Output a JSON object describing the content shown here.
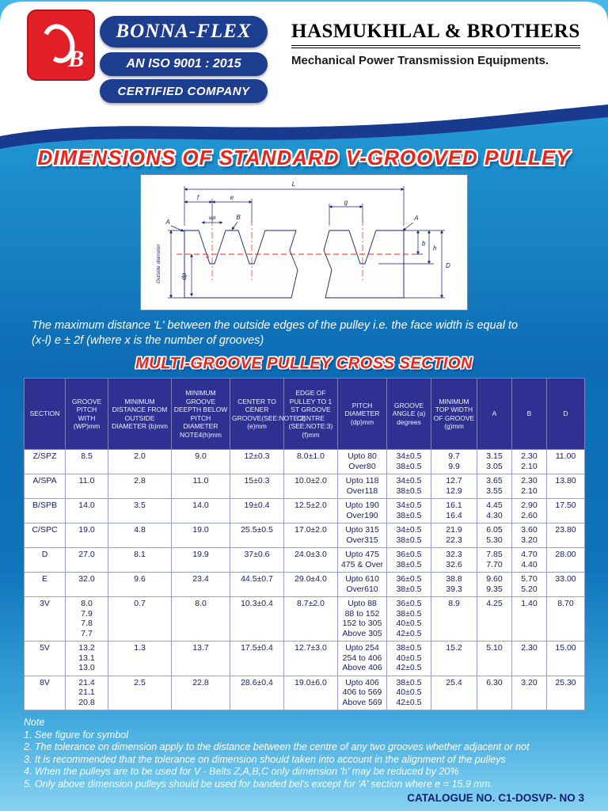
{
  "header": {
    "logo_letter": "B",
    "brand": "BONNA-FLEX",
    "iso_line": "AN ISO 9001 : 2015",
    "certified_line": "CERTIFIED COMPANY",
    "company": "HASMUKHLAL & BROTHERS",
    "tagline": "Mechanical Power Transmission Equipments."
  },
  "page_title": "DIMENSIONS OF STANDARD V-GROOVED PULLEY",
  "diagram": {
    "labels": {
      "L": "L",
      "f": "f",
      "e": "e",
      "A_left": "A",
      "wd": "wd",
      "B": "B",
      "g": "g",
      "A_right": "A",
      "dp": "dp",
      "alpha": "a",
      "b": "b",
      "h": "h",
      "D": "D",
      "axis": "Outside diameter"
    }
  },
  "description_line1": "The maximum distance 'L' between the outside edges of the pulley i.e. the face width is equal to",
  "description_line2": "(x-l) e ± 2f (where x is the number of grooves)",
  "table_title": "MULTI-GROOVE PULLEY CROSS SECTION",
  "table": {
    "headers": [
      "SECTION",
      "GROOVE PITCH WITH (WP)mm",
      "MINIMUM DISTANCE FROM OUTSIDE DIAMETER (b)mm",
      "MINIMUM GROOVE DEEPTH BELOW PITCH DIAMETER NOTE4(h)mm",
      "CENTER TO CENER GROOVE(SEE:NOTE:2)(e)mm",
      "EDGE OF PULLEY TO 1 ST GROOVE CENTRE (SEE:NOTE:3)(f)mm",
      "PITCH DIAMETER (dp)mm",
      "GROOVE ANGLE  (a) degrees",
      "MINIMUM TOP WIDTH OF GROOVE (g)mm",
      "A",
      "B",
      "D"
    ],
    "rows": [
      {
        "cells": [
          [
            "Z/SPZ"
          ],
          [
            "8.5"
          ],
          [
            "2.0"
          ],
          [
            "9.0"
          ],
          [
            "12±0.3"
          ],
          [
            "8.0±1.0"
          ],
          [
            "Upto 80",
            "Over80"
          ],
          [
            "34±0.5",
            "38±0.5"
          ],
          [
            "9.7",
            "9.9"
          ],
          [
            "3.15",
            "3.05"
          ],
          [
            "2.30",
            "2.10"
          ],
          [
            "11.00"
          ]
        ]
      },
      {
        "cells": [
          [
            "A/SPA"
          ],
          [
            "11.0"
          ],
          [
            "2.8"
          ],
          [
            "11.0"
          ],
          [
            "15±0.3"
          ],
          [
            "10.0±2.0"
          ],
          [
            "Upto 118",
            "Over118"
          ],
          [
            "34±0.5",
            "38±0.5"
          ],
          [
            "12.7",
            "12.9"
          ],
          [
            "3.65",
            "3.55"
          ],
          [
            "2.30",
            "2.10"
          ],
          [
            "13.80"
          ]
        ]
      },
      {
        "cells": [
          [
            "B/SPB"
          ],
          [
            "14.0"
          ],
          [
            "3.5"
          ],
          [
            "14.0"
          ],
          [
            "19±0.4"
          ],
          [
            "12.5±2.0"
          ],
          [
            "Upto 190",
            "Over190"
          ],
          [
            "34±0.5",
            "38±0.5"
          ],
          [
            "16.1",
            "16.4"
          ],
          [
            "4.45",
            "4.30"
          ],
          [
            "2.90",
            "2.60"
          ],
          [
            "17.50"
          ]
        ]
      },
      {
        "cells": [
          [
            "C/SPC"
          ],
          [
            "19.0"
          ],
          [
            "4.8"
          ],
          [
            "19.0"
          ],
          [
            "25.5±0.5"
          ],
          [
            "17.0±2.0"
          ],
          [
            "Upto 315",
            "Over315"
          ],
          [
            "34±0.5",
            "38±0.5"
          ],
          [
            "21.9",
            "22.3"
          ],
          [
            "6.05",
            "5.30"
          ],
          [
            "3.60",
            "3.20"
          ],
          [
            "23.80"
          ]
        ]
      },
      {
        "cells": [
          [
            "D"
          ],
          [
            "27.0"
          ],
          [
            "8.1"
          ],
          [
            "19.9"
          ],
          [
            "37±0.6"
          ],
          [
            "24.0±3.0"
          ],
          [
            "Upto 475",
            "475 & Over"
          ],
          [
            "36±0.5",
            "38±0.5"
          ],
          [
            "32.3",
            "32.6"
          ],
          [
            "7.85",
            "7.70"
          ],
          [
            "4.70",
            "4.40"
          ],
          [
            "28.00"
          ]
        ]
      },
      {
        "cells": [
          [
            "E"
          ],
          [
            "32.0"
          ],
          [
            "9.6"
          ],
          [
            "23.4"
          ],
          [
            "44.5±0.7"
          ],
          [
            "29.0±4.0"
          ],
          [
            "Upto 610",
            "Over610"
          ],
          [
            "36±0.5",
            "38±0.5"
          ],
          [
            "38.8",
            "39.3"
          ],
          [
            "9.60",
            "9.35"
          ],
          [
            "5.70",
            "5.20"
          ],
          [
            "33.00"
          ]
        ]
      },
      {
        "cells": [
          [
            "3V"
          ],
          [
            "8.0",
            "7.9",
            "7.8",
            "7.7"
          ],
          [
            "0.7"
          ],
          [
            "8.0"
          ],
          [
            "10.3±0.4"
          ],
          [
            "8.7±2.0"
          ],
          [
            "Upto 88",
            "88 to 152",
            "152 to 305",
            "Above 305"
          ],
          [
            "36±0.5",
            "38±0.5",
            "40±0.5",
            "42±0.5"
          ],
          [
            "8.9"
          ],
          [
            "4.25"
          ],
          [
            "1.40"
          ],
          [
            "8.70"
          ]
        ]
      },
      {
        "cells": [
          [
            "5V"
          ],
          [
            "13.2",
            "13.1",
            "13.0"
          ],
          [
            "1.3"
          ],
          [
            "13.7"
          ],
          [
            "17.5±0.4"
          ],
          [
            "12.7±3.0"
          ],
          [
            "Upto 254",
            "254 to 406",
            "Above 406"
          ],
          [
            "38±0.5",
            "40±0.5",
            "42±0.5"
          ],
          [
            "15.2"
          ],
          [
            "5.10"
          ],
          [
            "2.30"
          ],
          [
            "15.00"
          ]
        ]
      },
      {
        "cells": [
          [
            "8V"
          ],
          [
            "21.4",
            "21.1",
            "20.8"
          ],
          [
            "2.5"
          ],
          [
            "22.8"
          ],
          [
            "28.6±0.4"
          ],
          [
            "19.0±6.0"
          ],
          [
            "Upto 406",
            "406 to 569",
            "Above 569"
          ],
          [
            "38±0.5",
            "40±0.5",
            "42±0.5"
          ],
          [
            "25.4"
          ],
          [
            "6.30"
          ],
          [
            "3.20"
          ],
          [
            "25.30"
          ]
        ]
      }
    ]
  },
  "notes": {
    "title": "Note",
    "items": [
      "1. See figure for symbol",
      "2. The tolerance on dimension apply to the distance between the centre of any two grooves whether adjacent or not",
      "3. It is recommended that the tolerance on dimension should taken into account in the alignment of the pulleys",
      "4. When the pulleys are to be used for V - Belts Z,A,B,C only dimension 'h' may be reduced by 20%",
      "5. Only above dimension pulleys should be used for banded bel's except for 'A' section where e = 15.9 mm."
    ]
  },
  "footer": {
    "catalogue": "CATALOGUE NO. C1-DOSVP- NO 3"
  },
  "colors": {
    "navy": "#2e3192",
    "banner_blue": "#1d3d8f",
    "body_blue": "#0d6cb4",
    "red": "#e8251d",
    "table_text": "#17206b"
  }
}
